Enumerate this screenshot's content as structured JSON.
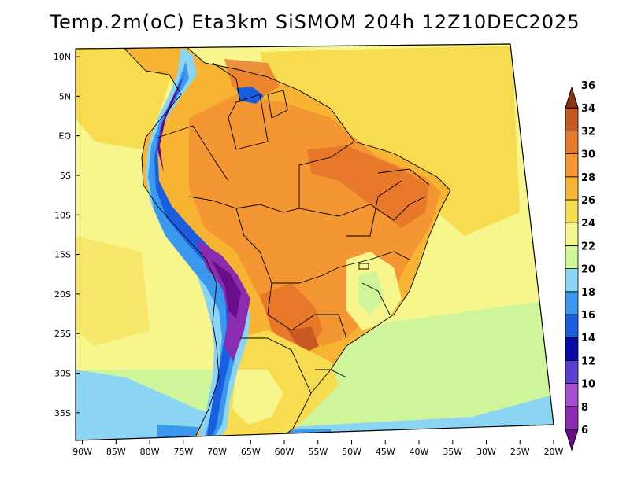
{
  "title": "Temp.2m(oC) Eta3km SiSMOM 204h 12Z10DEC2025",
  "map": {
    "lat_labels": [
      "10N",
      "5N",
      "EQ",
      "5S",
      "10S",
      "15S",
      "20S",
      "25S",
      "30S",
      "35S"
    ],
    "lon_labels": [
      "90W",
      "85W",
      "80W",
      "75W",
      "70W",
      "65W",
      "60W",
      "55W",
      "50W",
      "45W",
      "40W",
      "35W",
      "30W",
      "25W",
      "20W"
    ],
    "lat_values": [
      10,
      5,
      0,
      -5,
      -10,
      -15,
      -20,
      -25,
      -30,
      -35
    ],
    "lon_values": [
      -90,
      -85,
      -80,
      -75,
      -70,
      -65,
      -60,
      -55,
      -50,
      -45,
      -40,
      -35,
      -30,
      -25,
      -20
    ],
    "lat_range": [
      -38.5,
      11.0
    ],
    "lon_range": [
      -91.0,
      -20.0
    ]
  },
  "colorbar": {
    "levels": [
      "6",
      "8",
      "10",
      "12",
      "14",
      "16",
      "18",
      "20",
      "22",
      "24",
      "26",
      "28",
      "30",
      "32",
      "34",
      "36"
    ],
    "colors": [
      "#6a0d8a",
      "#8a2bb0",
      "#a64fd0",
      "#5a3fd0",
      "#0a0aa8",
      "#1a5ee0",
      "#3a98ee",
      "#8cd4f4",
      "#cff59a",
      "#f6f68c",
      "#f8dc50",
      "#f6b432",
      "#f49632",
      "#e8782a",
      "#c65a22",
      "#8a3414"
    ]
  }
}
